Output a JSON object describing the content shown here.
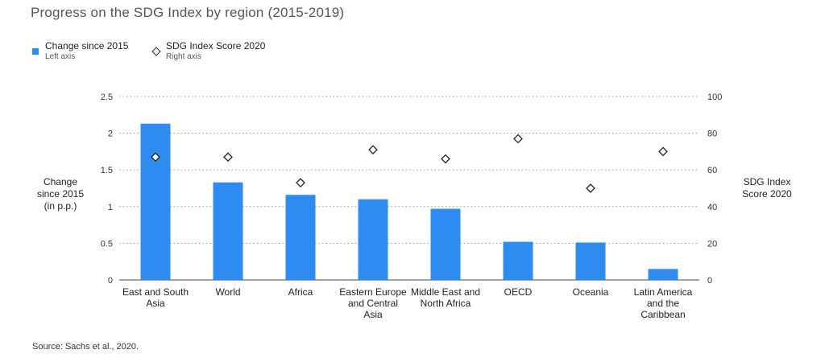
{
  "title": "Progress on the SDG Index by region (2015-2019)",
  "legend": [
    {
      "label": "Change since 2015",
      "sub": "Left axis",
      "marker": "square"
    },
    {
      "label": "SDG Index Score 2020",
      "sub": "Right axis",
      "marker": "diamond"
    }
  ],
  "source": "Source: Sachs et al., 2020.",
  "colors": {
    "bar": "#2e8cf0",
    "grid": "#9a9a9a",
    "marker": "#222222"
  },
  "chart_data": {
    "type": "bar",
    "title": "Progress on the SDG Index by region (2015-2019)",
    "categories": [
      [
        "East and South",
        "Asia"
      ],
      [
        "World"
      ],
      [
        "Africa"
      ],
      [
        "Eastern Europe",
        "and Central",
        "Asia"
      ],
      [
        "Middle East and",
        "North Africa"
      ],
      [
        "OECD"
      ],
      [
        "Oceania"
      ],
      [
        "Latin America",
        "and the",
        "Caribbean"
      ]
    ],
    "ylabel_left": [
      "Change",
      "since 2015",
      "(in p.p.)"
    ],
    "ylabel_right": [
      "SDG Index",
      "Score 2020"
    ],
    "ylim_left": [
      0,
      2.5
    ],
    "ylim_right": [
      0,
      100
    ],
    "yticks_left": [
      "0",
      "0.5",
      "1",
      "1.5",
      "2",
      "2.5"
    ],
    "yticks_right": [
      "0",
      "20",
      "40",
      "60",
      "80",
      "100"
    ],
    "grid": "dotted horizontal",
    "legend_position": "top-left",
    "series": [
      {
        "name": "Change since 2015",
        "axis": "left",
        "type": "bar",
        "values": [
          2.13,
          1.33,
          1.16,
          1.1,
          0.97,
          0.52,
          0.51,
          0.15
        ]
      },
      {
        "name": "SDG Index Score 2020",
        "axis": "right",
        "type": "scatter",
        "values": [
          67,
          67,
          53,
          71,
          66,
          77,
          50,
          70
        ]
      }
    ]
  }
}
